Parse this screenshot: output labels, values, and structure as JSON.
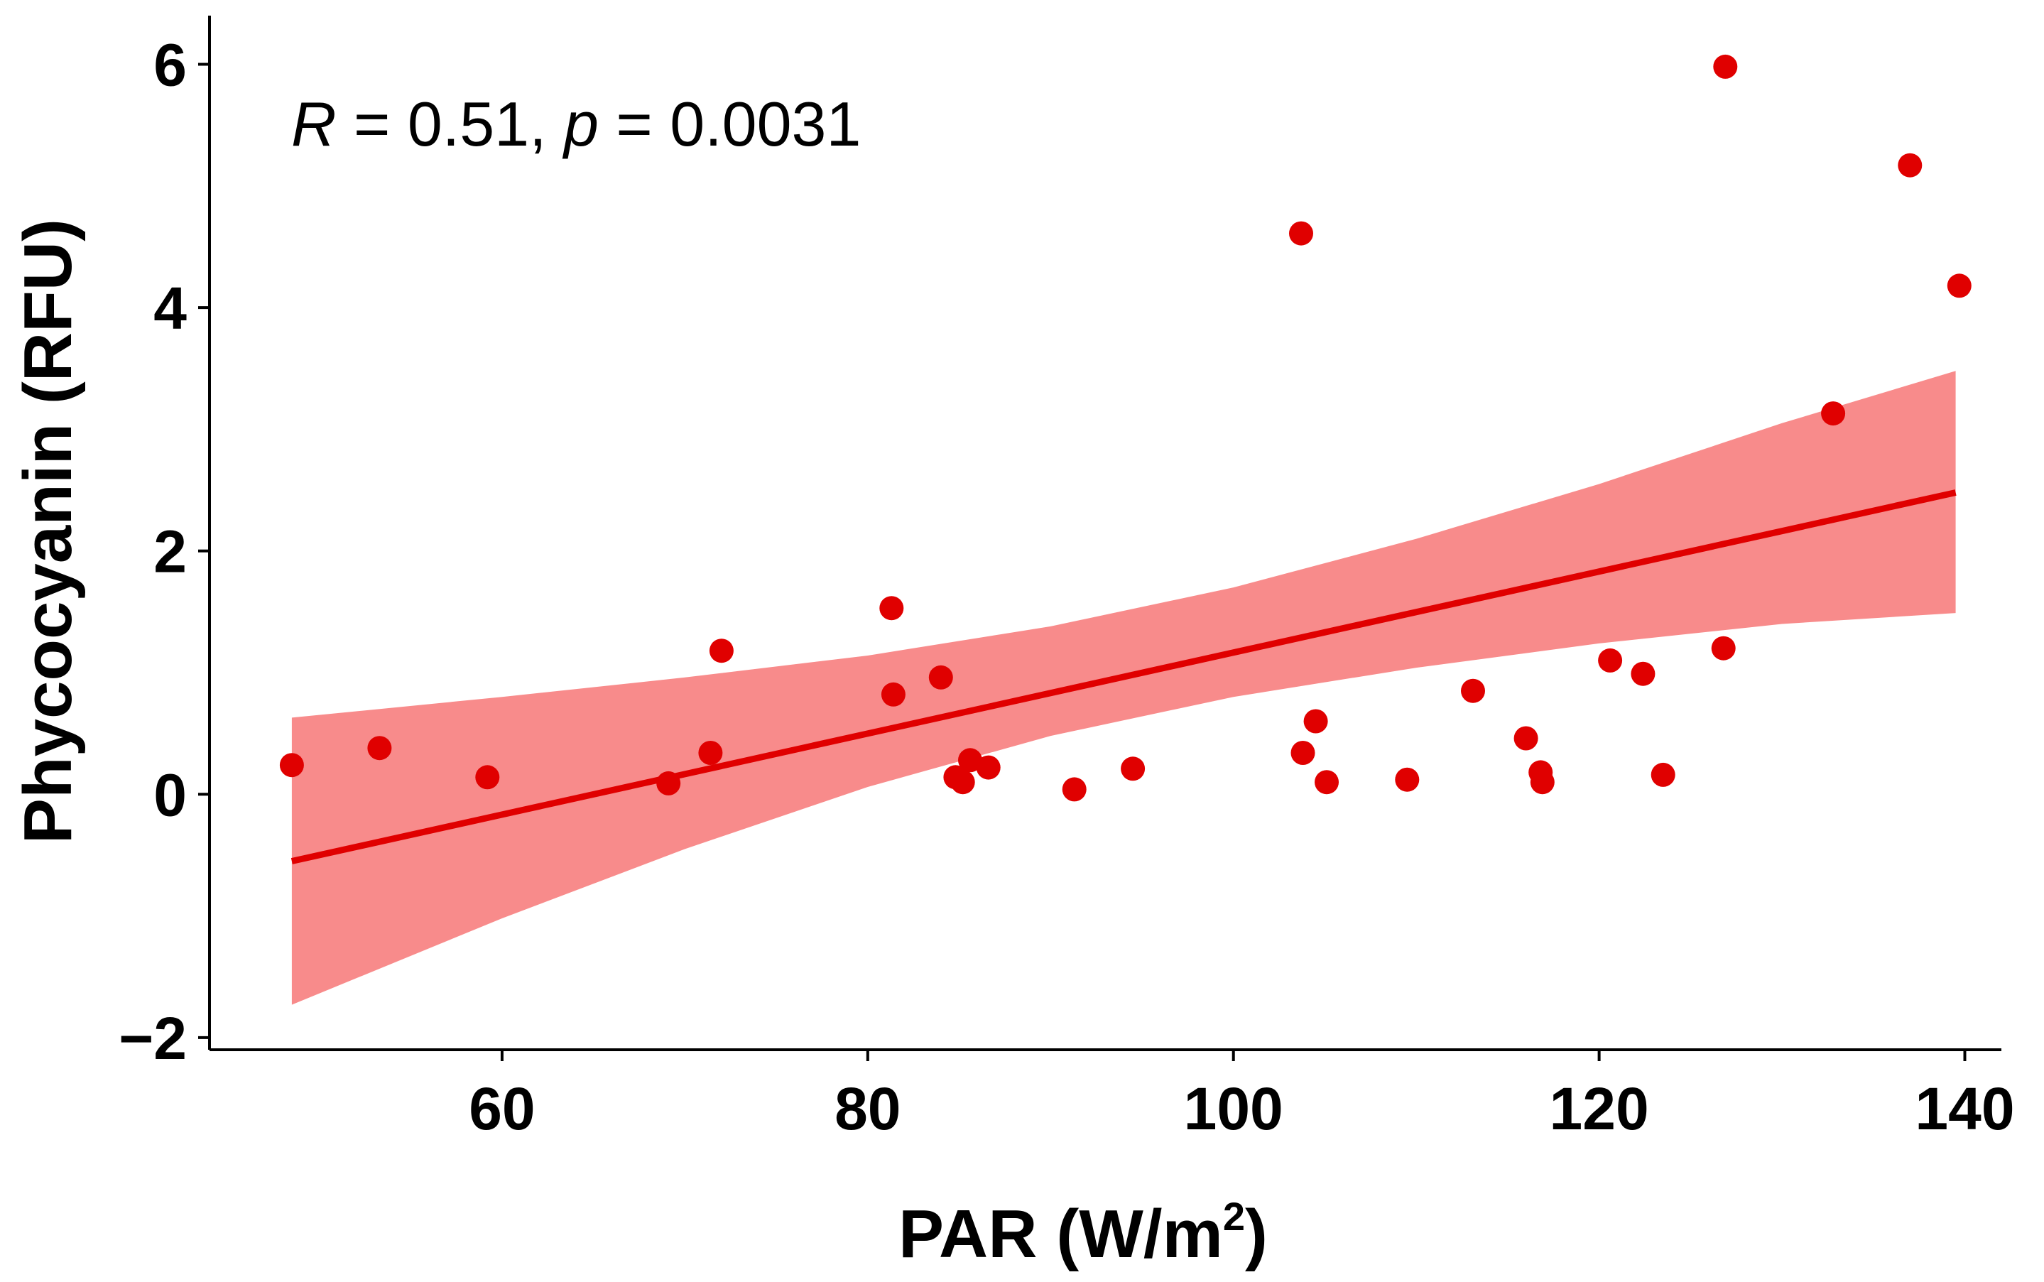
{
  "chart_data": {
    "type": "scatter",
    "title": "",
    "xlabel_base": "PAR (W/m",
    "xlabel_sup": "2",
    "xlabel_close": ")",
    "ylabel": "Phycocyanin (RFU)",
    "xlim": [
      44,
      142
    ],
    "ylim": [
      -2.1,
      6.4
    ],
    "x_ticks": [
      60,
      80,
      100,
      120,
      140
    ],
    "y_ticks": [
      -2,
      0,
      2,
      4,
      6
    ],
    "y_tick_labels": [
      "−2",
      "0",
      "2",
      "4",
      "6"
    ],
    "x_tick_labels": [
      "60",
      "80",
      "100",
      "120",
      "140"
    ],
    "annotation": {
      "r_symbol": "R",
      "r_eq": " = 0.51, ",
      "p_symbol": "p",
      "p_eq": " = 0.0031"
    },
    "colors": {
      "points": "#e00000",
      "line": "#e00000",
      "band": "#f88b8b"
    },
    "points": [
      {
        "x": 48.5,
        "y": 0.24
      },
      {
        "x": 53.3,
        "y": 0.38
      },
      {
        "x": 59.2,
        "y": 0.14
      },
      {
        "x": 69.1,
        "y": 0.09
      },
      {
        "x": 71.4,
        "y": 0.34
      },
      {
        "x": 72.0,
        "y": 1.18
      },
      {
        "x": 81.3,
        "y": 1.53
      },
      {
        "x": 81.4,
        "y": 0.82
      },
      {
        "x": 84.0,
        "y": 0.96
      },
      {
        "x": 84.8,
        "y": 0.14
      },
      {
        "x": 85.2,
        "y": 0.1
      },
      {
        "x": 85.6,
        "y": 0.28
      },
      {
        "x": 86.6,
        "y": 0.22
      },
      {
        "x": 91.3,
        "y": 0.04
      },
      {
        "x": 94.5,
        "y": 0.21
      },
      {
        "x": 103.7,
        "y": 4.61
      },
      {
        "x": 103.8,
        "y": 0.34
      },
      {
        "x": 104.5,
        "y": 0.6
      },
      {
        "x": 105.1,
        "y": 0.1
      },
      {
        "x": 109.5,
        "y": 0.12
      },
      {
        "x": 113.1,
        "y": 0.85
      },
      {
        "x": 116.0,
        "y": 0.46
      },
      {
        "x": 116.8,
        "y": 0.18
      },
      {
        "x": 116.9,
        "y": 0.1
      },
      {
        "x": 120.6,
        "y": 1.1
      },
      {
        "x": 122.4,
        "y": 0.99
      },
      {
        "x": 123.5,
        "y": 0.16
      },
      {
        "x": 126.8,
        "y": 1.2
      },
      {
        "x": 126.9,
        "y": 5.98
      },
      {
        "x": 132.8,
        "y": 3.13
      },
      {
        "x": 137.0,
        "y": 5.17
      },
      {
        "x": 139.7,
        "y": 4.18
      }
    ],
    "fit": {
      "x_start": 48.5,
      "x_end": 139.5,
      "y_start": -0.55,
      "y_end": 2.48
    },
    "confidence_band": {
      "upper": [
        {
          "x": 48.5,
          "y": 0.63
        },
        {
          "x": 60.0,
          "y": 0.8
        },
        {
          "x": 70.0,
          "y": 0.96
        },
        {
          "x": 80.0,
          "y": 1.14
        },
        {
          "x": 90.0,
          "y": 1.38
        },
        {
          "x": 100.0,
          "y": 1.7
        },
        {
          "x": 110.0,
          "y": 2.1
        },
        {
          "x": 120.0,
          "y": 2.55
        },
        {
          "x": 130.0,
          "y": 3.05
        },
        {
          "x": 139.5,
          "y": 3.48
        }
      ],
      "lower": [
        {
          "x": 48.5,
          "y": -1.73
        },
        {
          "x": 60.0,
          "y": -1.02
        },
        {
          "x": 70.0,
          "y": -0.45
        },
        {
          "x": 80.0,
          "y": 0.06
        },
        {
          "x": 90.0,
          "y": 0.48
        },
        {
          "x": 100.0,
          "y": 0.8
        },
        {
          "x": 110.0,
          "y": 1.04
        },
        {
          "x": 120.0,
          "y": 1.24
        },
        {
          "x": 130.0,
          "y": 1.4
        },
        {
          "x": 139.5,
          "y": 1.49
        }
      ]
    }
  }
}
